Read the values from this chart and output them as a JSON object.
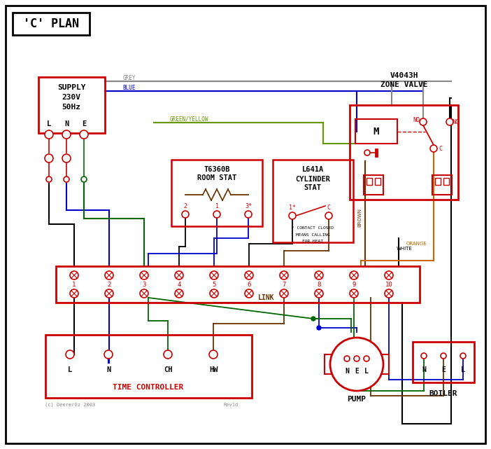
{
  "title": "'C' PLAN",
  "bg_color": "#ffffff",
  "border_color": "#000000",
  "red": "#cc0000",
  "blue": "#0000cc",
  "green": "#006600",
  "brown": "#663300",
  "orange": "#cc6600",
  "black": "#000000",
  "grey": "#888888",
  "green_yellow": "#669900",
  "supply_text": [
    "SUPPLY",
    "230V",
    "50Hz"
  ],
  "lne_labels": [
    "L",
    "N",
    "E"
  ],
  "tc_labels": [
    "L",
    "N",
    "CH",
    "HW"
  ],
  "terminal_numbers": [
    "1",
    "2",
    "3",
    "4",
    "5",
    "6",
    "7",
    "8",
    "9",
    "10"
  ],
  "zone_valve_title": [
    "V4043H",
    "ZONE VALVE"
  ],
  "room_stat_title": [
    "T6360B",
    "ROOM STAT"
  ],
  "cyl_stat_title": [
    "L641A",
    "CYLINDER",
    "STAT"
  ],
  "pump_label": "PUMP",
  "boiler_label": "BOILER",
  "tc_label": "TIME CONTROLLER",
  "link_label": "LINK",
  "footnote1": "(c) DeererOz 2003",
  "footnote2": "Rev1d",
  "contact_note": [
    "* CONTACT CLOSED",
    "MEANS CALLING",
    "FOR HEAT"
  ]
}
